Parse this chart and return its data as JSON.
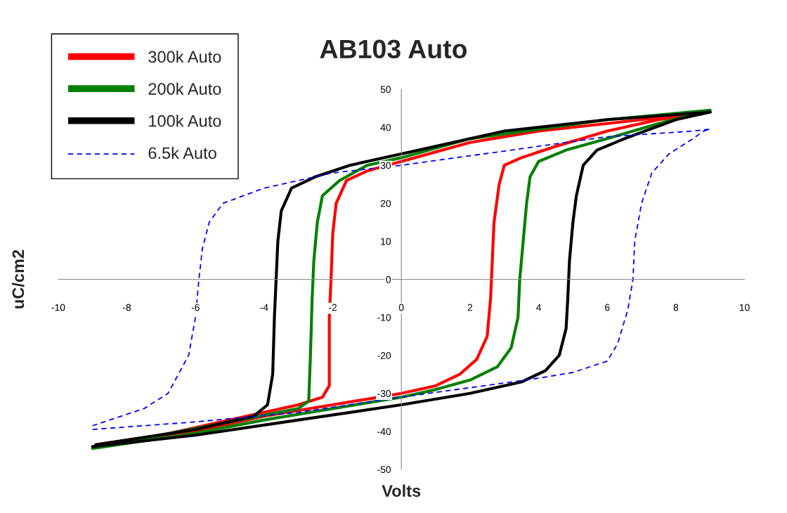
{
  "chart_data": {
    "type": "line",
    "title": "AB103 Auto",
    "xlabel": "Volts",
    "ylabel": "uC/cm2",
    "xlim": [
      -10,
      10
    ],
    "ylim": [
      -50,
      50
    ],
    "xticks": [
      -10,
      -8,
      -6,
      -4,
      -2,
      0,
      2,
      4,
      6,
      8,
      10
    ],
    "yticks": [
      -50,
      -40,
      -30,
      -20,
      -10,
      0,
      10,
      20,
      30,
      40,
      50
    ],
    "grid": false,
    "legend": "top left",
    "marker": "none",
    "series": [
      {
        "name": "300k Auto",
        "color": "#ff0000",
        "line_style": "solid",
        "x": [
          -9,
          -6,
          -4,
          -2,
          0,
          1,
          1.7,
          2.2,
          2.5,
          2.6,
          2.65,
          2.7,
          2.85,
          3,
          3.5,
          4.5,
          6,
          7.5,
          9,
          6,
          4,
          2,
          0,
          -1,
          -1.6,
          -1.9,
          -2,
          -2.05,
          -2.1,
          -2.1,
          -2.3,
          -3,
          -5,
          -7,
          -8.9
        ],
        "values": [
          -44,
          -40,
          -36,
          -33,
          -30,
          -28,
          -25,
          -21,
          -15,
          -5,
          5,
          15,
          25,
          30,
          32,
          35,
          39,
          42,
          44,
          41,
          39,
          36,
          31,
          28.5,
          26,
          20,
          12,
          0,
          -10,
          -28,
          -31,
          -33,
          -37,
          -41,
          -43.5
        ]
      },
      {
        "name": "200k Auto",
        "color": "#008000",
        "line_style": "solid",
        "x": [
          -9,
          -6,
          -4,
          -2,
          0,
          1,
          2,
          2.8,
          3.2,
          3.4,
          3.45,
          3.55,
          3.65,
          3.75,
          4,
          4.8,
          6,
          7.5,
          9,
          6,
          4,
          2,
          0,
          -1,
          -1.8,
          -2.3,
          -2.45,
          -2.55,
          -2.6,
          -2.65,
          -2.7,
          -3,
          -5,
          -7,
          -8.9
        ],
        "values": [
          -44.5,
          -40.5,
          -37,
          -34,
          -31,
          -29,
          -26.5,
          -23,
          -18,
          -10,
          0,
          10,
          20,
          27,
          31,
          34,
          37,
          41,
          44.5,
          42,
          39.5,
          37,
          32,
          30,
          26,
          22,
          15,
          5,
          -5,
          -20,
          -32,
          -34,
          -37.5,
          -41,
          -44
        ]
      },
      {
        "name": "100k Auto",
        "color": "#000000",
        "line_style": "solid",
        "x": [
          -9,
          -6,
          -3,
          0,
          2,
          3.5,
          4.2,
          4.6,
          4.8,
          4.85,
          4.9,
          5,
          5.1,
          5.3,
          5.7,
          6.5,
          8,
          9,
          6,
          3,
          0,
          -1.5,
          -2.5,
          -3.2,
          -3.5,
          -3.6,
          -3.65,
          -3.7,
          -3.75,
          -3.9,
          -4.3,
          -6,
          -8.9
        ],
        "values": [
          -44,
          -41,
          -37,
          -33,
          -30,
          -27,
          -24,
          -20,
          -13,
          -5,
          5,
          15,
          22,
          30,
          34,
          37,
          42,
          44,
          42,
          39,
          33,
          30,
          27,
          24,
          18,
          10,
          0,
          -10,
          -25,
          -33,
          -36,
          -39.5,
          -43.5
        ]
      },
      {
        "name": "6.5k Auto",
        "color": "#0000ff",
        "line_style": "dashed",
        "x": [
          -9,
          -6,
          -3,
          0,
          2,
          4,
          5,
          6,
          6.3,
          6.6,
          6.75,
          6.8,
          7,
          7.3,
          7.8,
          8.5,
          8.8,
          9,
          8.5,
          6,
          4,
          2,
          0,
          -2,
          -4,
          -5.2,
          -5.6,
          -5.8,
          -5.9,
          -6,
          -6.2,
          -6.8,
          -7.5,
          -8.5,
          -9
        ],
        "values": [
          -39.5,
          -37.5,
          -35,
          -31,
          -28.5,
          -26,
          -24.5,
          -21.5,
          -17,
          -8,
          0,
          10,
          20,
          28,
          33,
          37,
          39,
          39.5,
          39,
          37.5,
          35,
          32.5,
          30,
          28,
          24,
          20,
          15,
          8,
          0,
          -10,
          -20,
          -30,
          -34,
          -37,
          -38.5
        ]
      }
    ]
  }
}
